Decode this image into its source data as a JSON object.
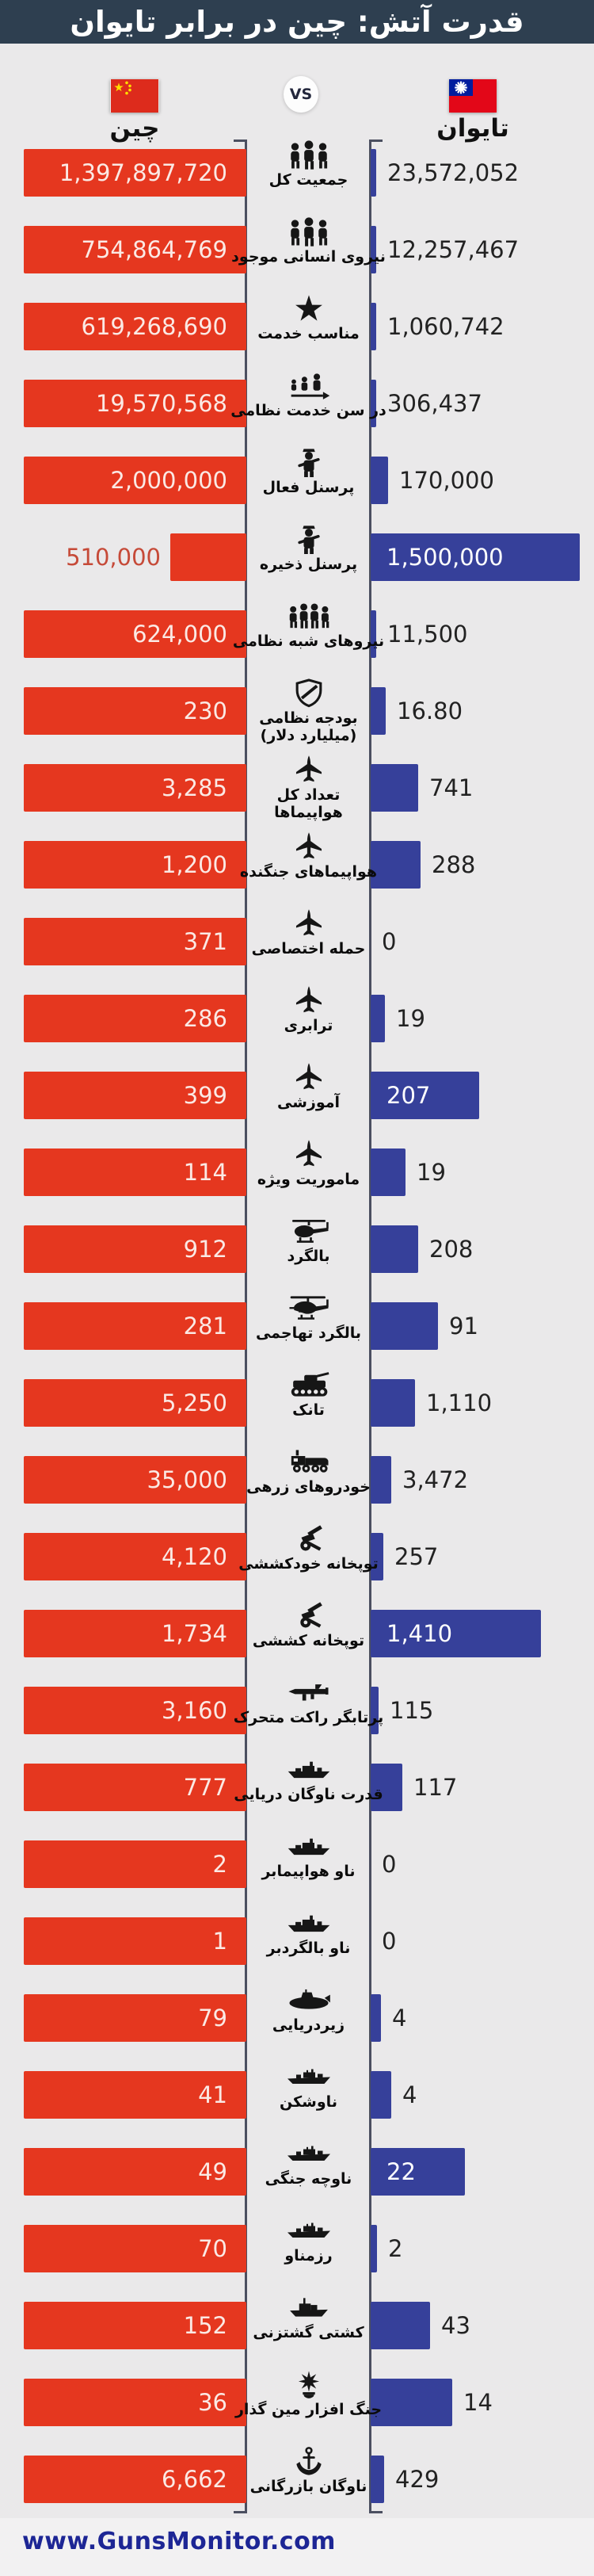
{
  "header": {
    "title": "قدرت آتش: چین در برابر تایوان"
  },
  "versus": {
    "vs_label": "VS",
    "left": {
      "name": "چین",
      "flag": "china-flag"
    },
    "right": {
      "name": "تایوان",
      "flag": "taiwan-flag"
    }
  },
  "footer": {
    "website": "www.GunsMonitor.com"
  },
  "colors": {
    "header_bg": "#2e3f50",
    "background": "#eae9ea",
    "china_bar": "#e5371f",
    "taiwan_bar": "#36409a",
    "axis": "#4b4f60",
    "china_value_outside": "#c64a38",
    "taiwan_value_outside": "#222222",
    "footer_text": "#1d2695"
  },
  "chart_data": {
    "type": "bar",
    "orientation": "mirrored-horizontal",
    "note": "each row scaled to the larger of the two values; China bars grow leftward, Taiwan bars grow rightward",
    "categories": [
      "جمعیت کل",
      "نیروی انسانی موجود",
      "مناسب خدمت",
      "در سن خدمت نظامی",
      "پرسنل فعال",
      "پرسنل ذخیره",
      "نیروهای شبه نظامی",
      "بودجه نظامی\n(میلیارد دلار)",
      "تعداد کل\nهواپیماها",
      "هواپیماهای جنگنده",
      "حمله اختصاصی",
      "ترابری",
      "آموزشی",
      "ماموریت ویژه",
      "بالگرد",
      "بالگرد تهاجمی",
      "تانک",
      "خودروهای زرهی",
      "توپخانه خودکششی",
      "توپخانه کششی",
      "پرتابگر راکت متحرک",
      "قدرت ناوگان دریایی",
      "ناو هواپیمابر",
      "ناو بالگردبر",
      "زیردریایی",
      "ناوشکن",
      "ناوچه جنگی",
      "رزمناو",
      "کشتی گشتزنی",
      "جنگ افزار مین گذار",
      "ناوگان بازرگانی"
    ],
    "category_icons": [
      "population",
      "manpower",
      "fit-for-service",
      "military-age",
      "active-personnel",
      "reserve-personnel",
      "paramilitary",
      "defense-budget",
      "total-aircraft",
      "fighter-aircraft",
      "attack-aircraft",
      "transport-aircraft",
      "trainer-aircraft",
      "special-mission-aircraft",
      "helicopter",
      "attack-helicopter",
      "tank",
      "armored-vehicle",
      "self-propelled-artillery",
      "towed-artillery",
      "rocket-projector",
      "navy-fleet",
      "aircraft-carrier",
      "helicopter-carrier",
      "submarine",
      "destroyer",
      "frigate",
      "corvette",
      "patrol-ship",
      "mine-warfare",
      "merchant-marine"
    ],
    "series": [
      {
        "name": "چین",
        "color": "#e5371f",
        "values": [
          1397897720,
          754864769,
          619268690,
          19570568,
          2000000,
          510000,
          624000,
          230,
          3285,
          1200,
          371,
          286,
          399,
          114,
          912,
          281,
          5250,
          35000,
          4120,
          1734,
          3160,
          777,
          2,
          1,
          79,
          41,
          49,
          70,
          152,
          36,
          6662
        ],
        "labels": [
          "1,397,897,720",
          "754,864,769",
          "619,268,690",
          "19,570,568",
          "2,000,000",
          "510,000",
          "624,000",
          "230",
          "3,285",
          "1,200",
          "371",
          "286",
          "399",
          "114",
          "912",
          "281",
          "5,250",
          "35,000",
          "4,120",
          "1,734",
          "3,160",
          "777",
          "2",
          "1",
          "79",
          "41",
          "49",
          "70",
          "152",
          "36",
          "6,662"
        ]
      },
      {
        "name": "تایوان",
        "color": "#36409a",
        "values": [
          23572052,
          12257467,
          1060742,
          306437,
          170000,
          1500000,
          11500,
          16.8,
          741,
          288,
          0,
          19,
          207,
          19,
          208,
          91,
          1110,
          3472,
          257,
          1410,
          115,
          117,
          0,
          0,
          4,
          4,
          22,
          2,
          43,
          14,
          429
        ],
        "labels": [
          "23,572,052",
          "12,257,467",
          "1,060,742",
          "306,437",
          "170,000",
          "1,500,000",
          "11,500",
          "16.80",
          "741",
          "288",
          "0",
          "19",
          "207",
          "19",
          "208",
          "91",
          "1,110",
          "3,472",
          "257",
          "1,410",
          "115",
          "117",
          "0",
          "0",
          "4",
          "4",
          "22",
          "2",
          "43",
          "14",
          "429"
        ]
      }
    ]
  }
}
